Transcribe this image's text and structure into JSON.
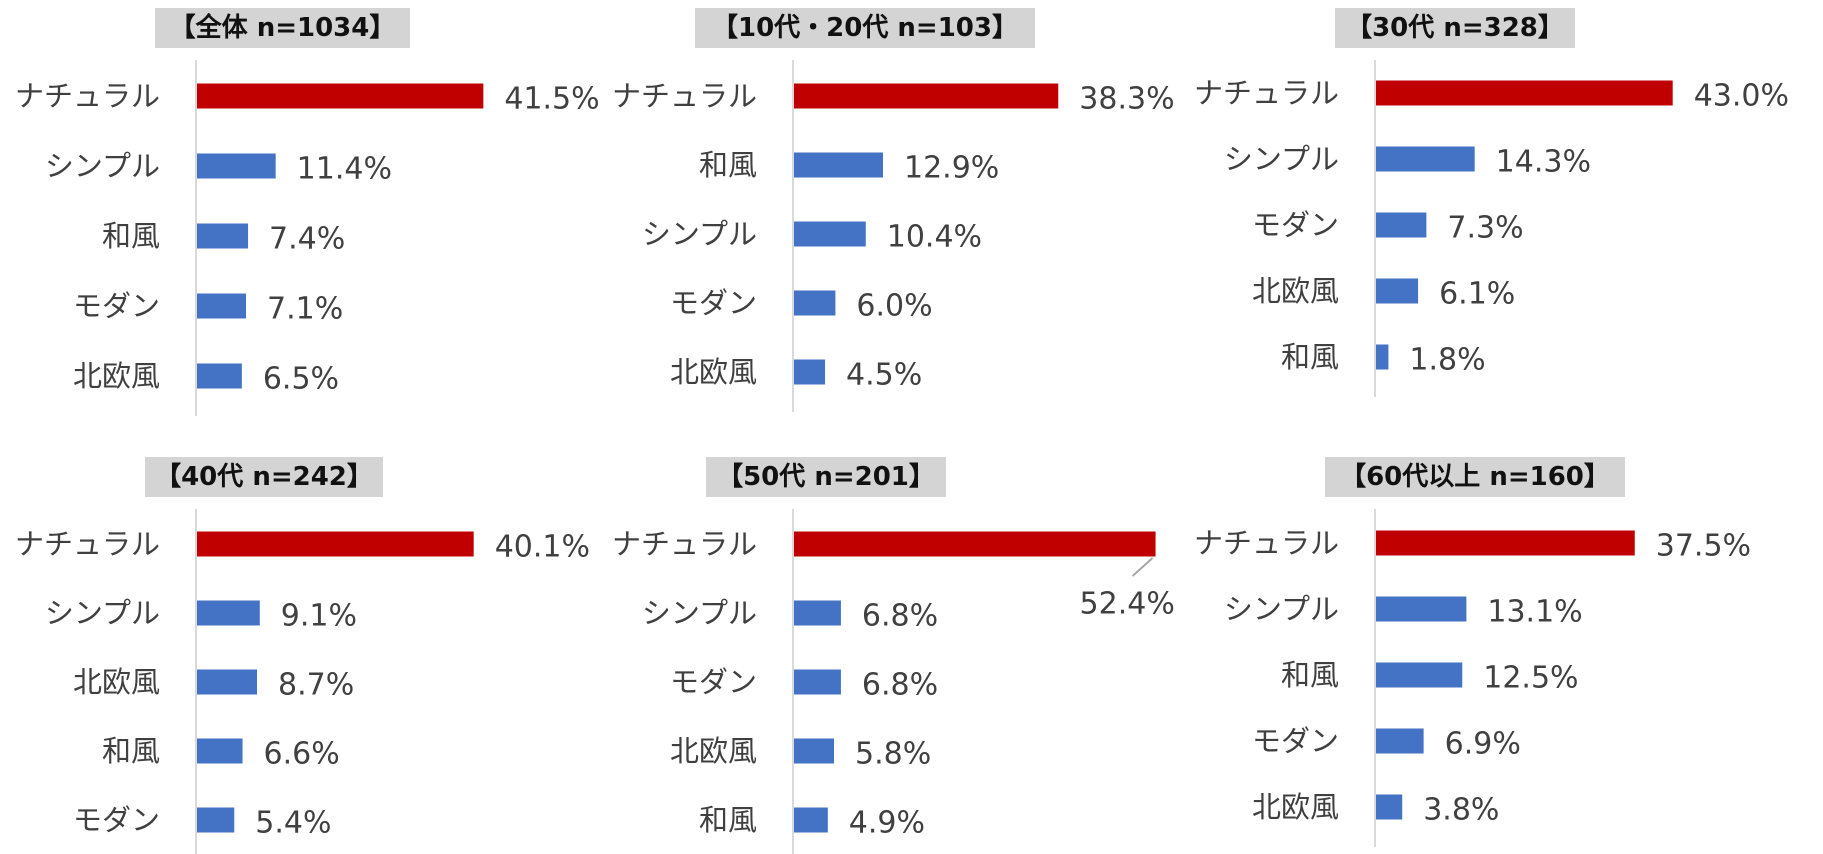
{
  "colors": {
    "highlight": "#c00000",
    "bar": "#4472c4",
    "axis": "#d9d9d9",
    "text": "#404040",
    "title_bg": "#d4d4d4"
  },
  "chart_data": [
    {
      "type": "bar",
      "orientation": "horizontal",
      "title": "【全体 n=1034】",
      "categories": [
        "ナチュラル",
        "シンプル",
        "和風",
        "モダン",
        "北欧風"
      ],
      "values": [
        41.5,
        11.4,
        7.4,
        7.1,
        6.5
      ],
      "value_labels": [
        "41.5%",
        "11.4%",
        "7.4%",
        "7.1%",
        "6.5%"
      ]
    },
    {
      "type": "bar",
      "orientation": "horizontal",
      "title": "【10代・20代 n=103】",
      "categories": [
        "ナチュラル",
        "和風",
        "シンプル",
        "モダン",
        "北欧風"
      ],
      "values": [
        38.3,
        12.9,
        10.4,
        6.0,
        4.5
      ],
      "value_labels": [
        "38.3%",
        "12.9%",
        "10.4%",
        "6.0%",
        "4.5%"
      ]
    },
    {
      "type": "bar",
      "orientation": "horizontal",
      "title": "【30代 n=328】",
      "categories": [
        "ナチュラル",
        "シンプル",
        "モダン",
        "北欧風",
        "和風"
      ],
      "values": [
        43.0,
        14.3,
        7.3,
        6.1,
        1.8
      ],
      "value_labels": [
        "43.0%",
        "14.3%",
        "7.3%",
        "6.1%",
        "1.8%"
      ]
    },
    {
      "type": "bar",
      "orientation": "horizontal",
      "title": "【40代 n=242】",
      "categories": [
        "ナチュラル",
        "シンプル",
        "北欧風",
        "和風",
        "モダン"
      ],
      "values": [
        40.1,
        9.1,
        8.7,
        6.6,
        5.4
      ],
      "value_labels": [
        "40.1%",
        "9.1%",
        "8.7%",
        "6.6%",
        "5.4%"
      ]
    },
    {
      "type": "bar",
      "orientation": "horizontal",
      "title": "【50代 n=201】",
      "categories": [
        "ナチュラル",
        "シンプル",
        "モダン",
        "北欧風",
        "和風"
      ],
      "values": [
        52.4,
        6.8,
        6.8,
        5.8,
        4.9
      ],
      "value_labels": [
        "52.4%",
        "6.8%",
        "6.8%",
        "5.8%",
        "4.9%"
      ]
    },
    {
      "type": "bar",
      "orientation": "horizontal",
      "title": "【60代以上 n=160】",
      "categories": [
        "ナチュラル",
        "シンプル",
        "和風",
        "モダン",
        "北欧風"
      ],
      "values": [
        37.5,
        13.1,
        12.5,
        6.9,
        3.8
      ],
      "value_labels": [
        "37.5%",
        "13.1%",
        "12.5%",
        "6.9%",
        "3.8%"
      ]
    }
  ]
}
